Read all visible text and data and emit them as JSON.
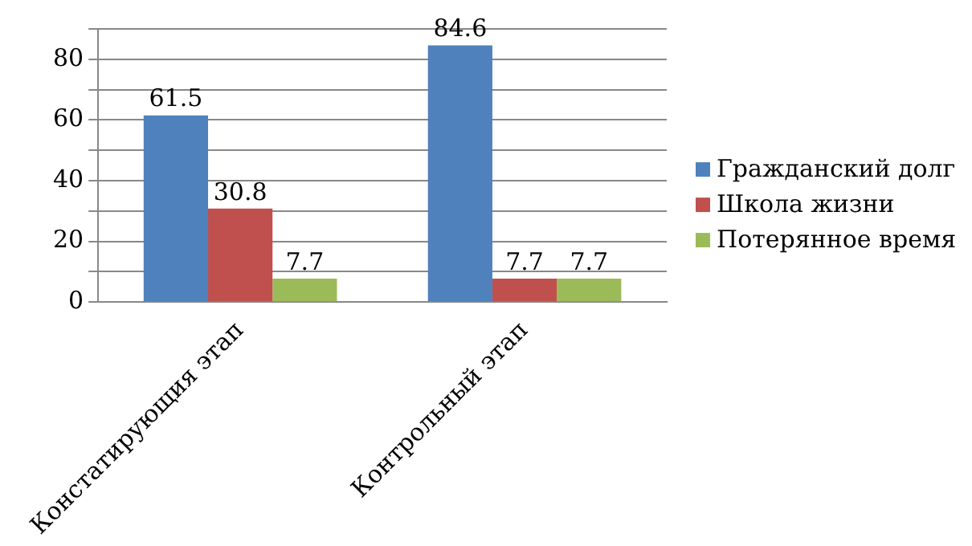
{
  "chart_data": {
    "type": "bar",
    "categories": [
      "Констатирующия этап",
      "Контрольный этап"
    ],
    "series": [
      {
        "name": "Гражданский долг",
        "color": "#4f81bd",
        "values": [
          61.5,
          84.6
        ]
      },
      {
        "name": "Школа жизни",
        "color": "#c0504d",
        "values": [
          30.8,
          7.7
        ]
      },
      {
        "name": "Потерянное время",
        "color": "#9bbb59",
        "values": [
          7.7,
          7.7
        ]
      }
    ],
    "ylim": [
      0,
      90
    ],
    "yticks": [
      0,
      {
        "value": 10,
        "label": null
      },
      20,
      {
        "value": 30,
        "label": null
      },
      40,
      {
        "value": 50,
        "label": null
      },
      60,
      {
        "value": 70,
        "label": null
      },
      80,
      {
        "value": 90,
        "label": null
      }
    ],
    "grid": "y",
    "legend": "right",
    "data_labels": true
  }
}
